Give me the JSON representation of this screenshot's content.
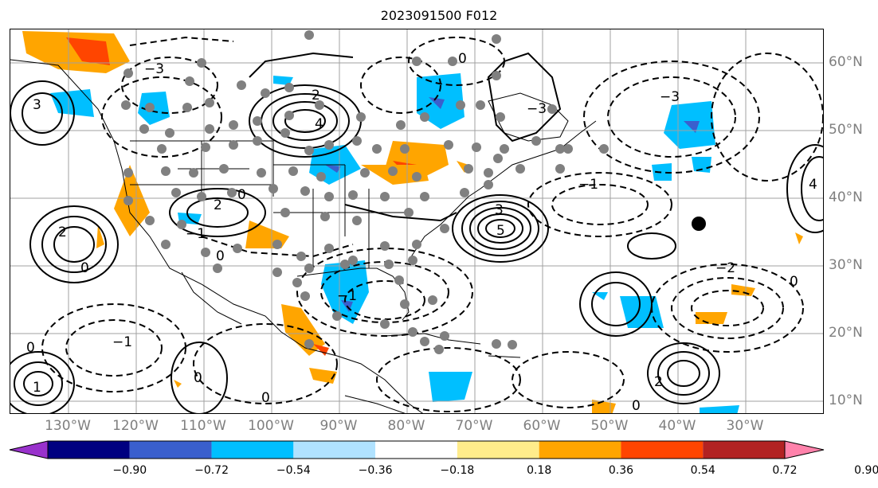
{
  "title": "2023091500 F012",
  "lon_labels": [
    "130°W",
    "120°W",
    "110°W",
    "100°W",
    "90°W",
    "80°W",
    "70°W",
    "60°W",
    "50°W",
    "40°W",
    "30°W"
  ],
  "lat_labels": [
    "60°N",
    "50°N",
    "40°N",
    "30°N",
    "20°N",
    "10°N"
  ],
  "colorbar": {
    "ticks": [
      "−0.90",
      "−0.72",
      "−0.54",
      "−0.36",
      "−0.18",
      "0.18",
      "0.36",
      "0.54",
      "0.72",
      "0.90"
    ],
    "colors": [
      "#9932CC",
      "#000080",
      "#3A5FCD",
      "#00BFFF",
      "#B0E2FF",
      "#FFFFFF",
      "#FFEC8B",
      "#FFA500",
      "#FF4500",
      "#B22222",
      "#FF82AB"
    ],
    "extend": "both"
  },
  "colors": {
    "positive_fill_1": "#FFA500",
    "positive_fill_2": "#FF4500",
    "negative_fill_1": "#00BFFF",
    "negative_fill_2": "#3A5FCD",
    "station_marker": "#808080",
    "highlight_marker": "#000000",
    "gridline": "#A0A0A0"
  },
  "contour_labels": [
    "3",
    "2",
    "1",
    "0",
    "−1",
    "−2",
    "−3",
    "4",
    "5"
  ]
}
